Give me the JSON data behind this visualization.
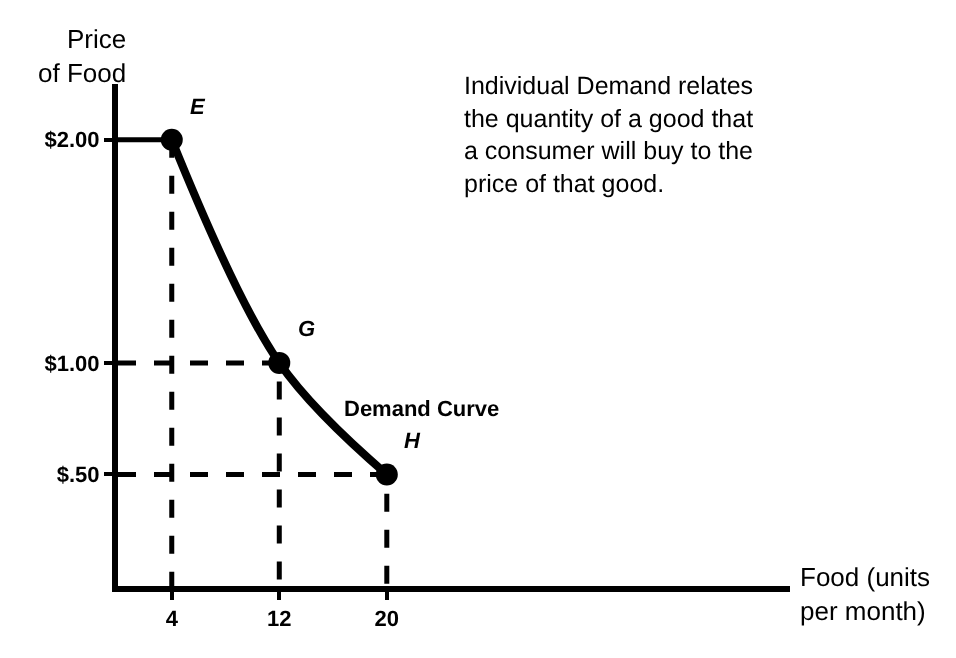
{
  "chart_data": {
    "type": "line",
    "xlabel": "Food (units\nper month)",
    "ylabel": "Price\nof Food",
    "xlim": [
      0,
      50
    ],
    "ylim": [
      0,
      2.25
    ],
    "xticks": [
      4,
      12,
      20
    ],
    "yticks": [
      {
        "value": 0.5,
        "label": "$.50"
      },
      {
        "value": 1,
        "label": "$1.00"
      },
      {
        "value": 2,
        "label": "$2.00"
      }
    ],
    "series": [
      {
        "color": "#000000",
        "x": [
          4,
          12,
          20
        ],
        "values": [
          2.0,
          1.0,
          0.5
        ],
        "marker": "circle",
        "line_style": "solid"
      },
      {
        "color": "#000000",
        "x": [
          0,
          4
        ],
        "values": [
          2.0,
          2.0
        ],
        "marker": "none",
        "line_style": "solid"
      },
      {
        "color": "#000000",
        "x": [
          4,
          4
        ],
        "values": [
          2.0,
          0
        ],
        "marker": "none",
        "line_style": "dashed"
      },
      {
        "color": "#000000",
        "x": [
          0,
          12,
          12
        ],
        "values": [
          1.0,
          1.0,
          0
        ],
        "marker": "none",
        "line_style": "dashed"
      },
      {
        "color": "#000000",
        "x": [
          0,
          20,
          20
        ],
        "values": [
          0.5,
          0.5,
          0
        ],
        "marker": "none",
        "line_style": "dashed"
      }
    ],
    "annotations": [
      "Individual Demand relates the quantity of a good that a consumer will buy to the price of that good.",
      {
        "text": "E",
        "x": 4,
        "y": 2.0
      },
      {
        "text": "G",
        "x": 12,
        "y": 1.0
      },
      {
        "text": "H",
        "x": 20,
        "y": 0.5
      },
      "Demand Curve"
    ]
  }
}
